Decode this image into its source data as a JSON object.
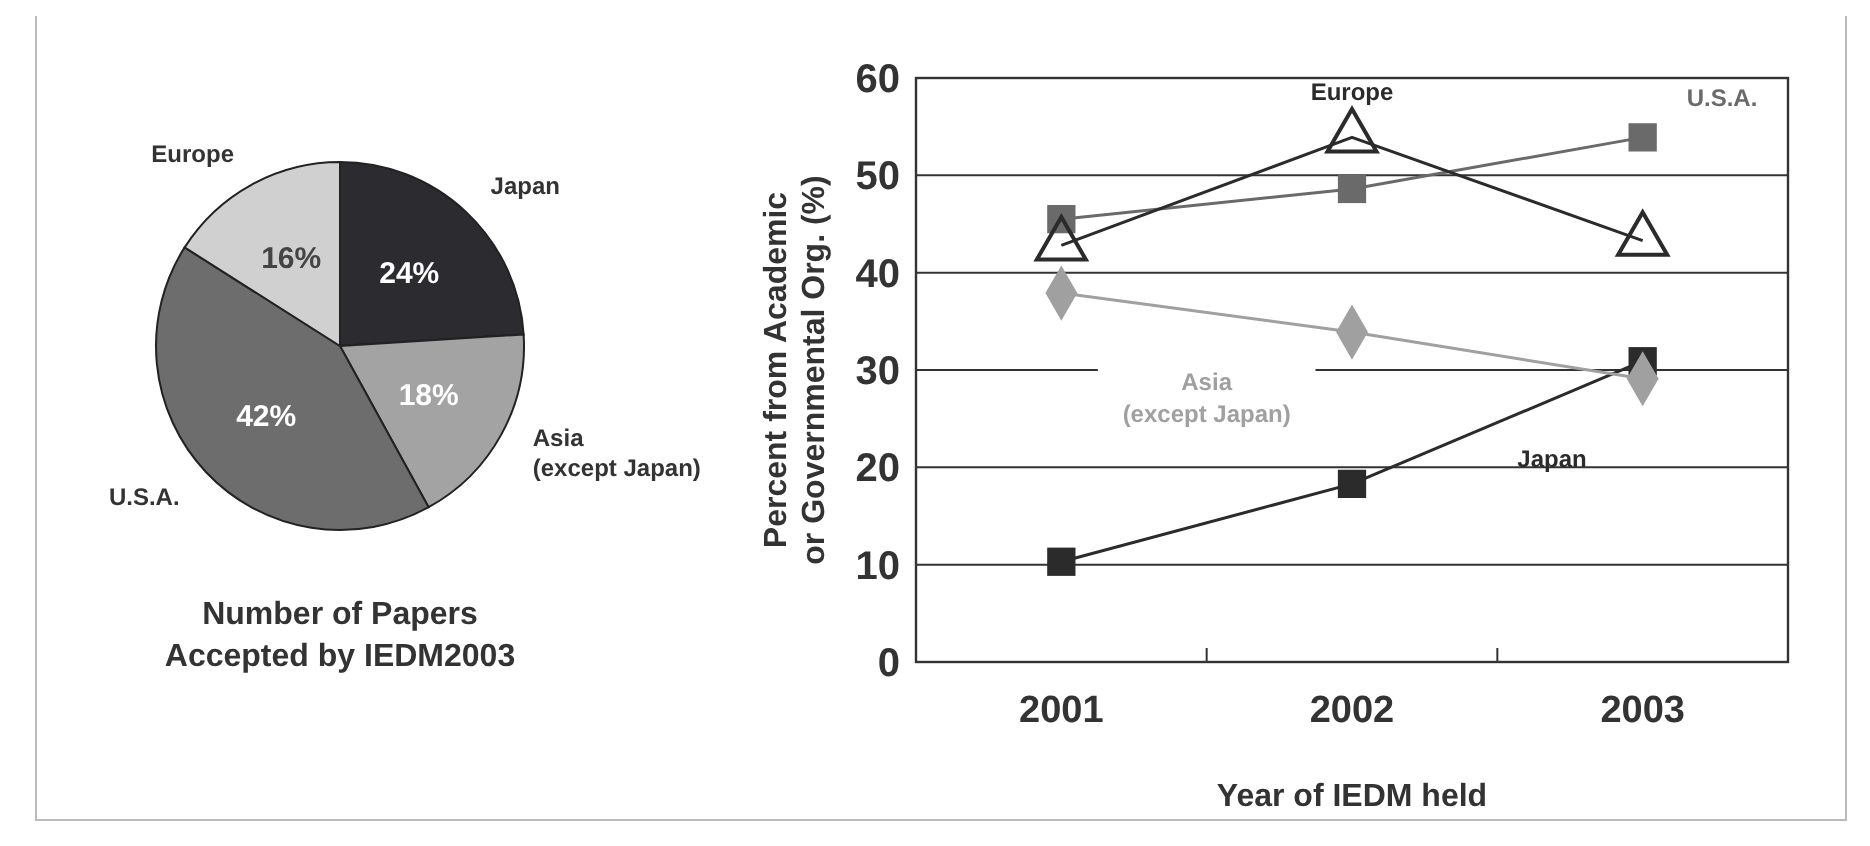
{
  "chart_data": [
    {
      "type": "pie",
      "title": "Number of Papers Accepted by IEDM2003",
      "categories": [
        "Japan",
        "Asia (except Japan)",
        "U.S.A.",
        "Europe"
      ],
      "values": [
        24,
        18,
        42,
        16
      ],
      "colors": [
        "#2b2b30",
        "#a3a3a3",
        "#6d6d6d",
        "#d0d0d0"
      ],
      "value_labels": [
        "24%",
        "18%",
        "42%",
        "16%"
      ]
    },
    {
      "type": "line",
      "xlabel": "Year of IEDM held",
      "ylabel": "Percent from Academic or Governmental Org. (%)",
      "categories": [
        "2001",
        "2002",
        "2003"
      ],
      "ylim": [
        0,
        60
      ],
      "yticks": [
        0,
        10,
        20,
        30,
        40,
        50,
        60
      ],
      "grid": "y",
      "series": [
        {
          "name": "Japan",
          "color": "#2b2b2b",
          "marker": "square",
          "values": [
            10.3,
            18.3,
            30.9
          ]
        },
        {
          "name": "U.S.A.",
          "color": "#6a6a6a",
          "marker": "square",
          "values": [
            45.5,
            48.6,
            53.9
          ]
        },
        {
          "name": "Europe",
          "color": "#2b2b2b",
          "marker": "triangle",
          "values": [
            42.8,
            53.9,
            43.3
          ]
        },
        {
          "name": "Asia (except Japan)",
          "color": "#a0a0a0",
          "marker": "diamond",
          "values": [
            37.9,
            33.9,
            29.1
          ]
        }
      ]
    }
  ]
}
